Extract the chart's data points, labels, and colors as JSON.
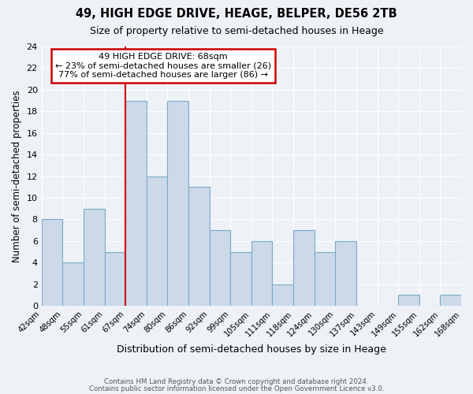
{
  "title": "49, HIGH EDGE DRIVE, HEAGE, BELPER, DE56 2TB",
  "subtitle": "Size of property relative to semi-detached houses in Heage",
  "xlabel": "Distribution of semi-detached houses by size in Heage",
  "ylabel": "Number of semi-detached properties",
  "bin_edges": [
    "42sqm",
    "48sqm",
    "55sqm",
    "61sqm",
    "67sqm",
    "74sqm",
    "80sqm",
    "86sqm",
    "92sqm",
    "99sqm",
    "105sqm",
    "111sqm",
    "118sqm",
    "124sqm",
    "130sqm",
    "137sqm",
    "143sqm",
    "149sqm",
    "155sqm",
    "162sqm",
    "168sqm"
  ],
  "bar_heights": [
    8,
    4,
    9,
    5,
    19,
    12,
    19,
    11,
    7,
    5,
    6,
    2,
    7,
    5,
    6,
    0,
    0,
    1,
    0,
    1
  ],
  "bar_color": "#ccd9e8",
  "bar_edge_color": "#7aaac8",
  "highlight_line_color": "#cc0000",
  "highlight_line_index": 4,
  "ylim": [
    0,
    24
  ],
  "yticks": [
    0,
    2,
    4,
    6,
    8,
    10,
    12,
    14,
    16,
    18,
    20,
    22,
    24
  ],
  "annotation_title": "49 HIGH EDGE DRIVE: 68sqm",
  "annotation_line1": "← 23% of semi-detached houses are smaller (26)",
  "annotation_line2": "77% of semi-detached houses are larger (86) →",
  "annotation_box_color": "#ffffff",
  "annotation_box_edge": "#cc0000",
  "footer1": "Contains HM Land Registry data © Crown copyright and database right 2024.",
  "footer2": "Contains public sector information licensed under the Open Government Licence v3.0.",
  "background_color": "#eef2f7",
  "grid_color": "#ffffff"
}
